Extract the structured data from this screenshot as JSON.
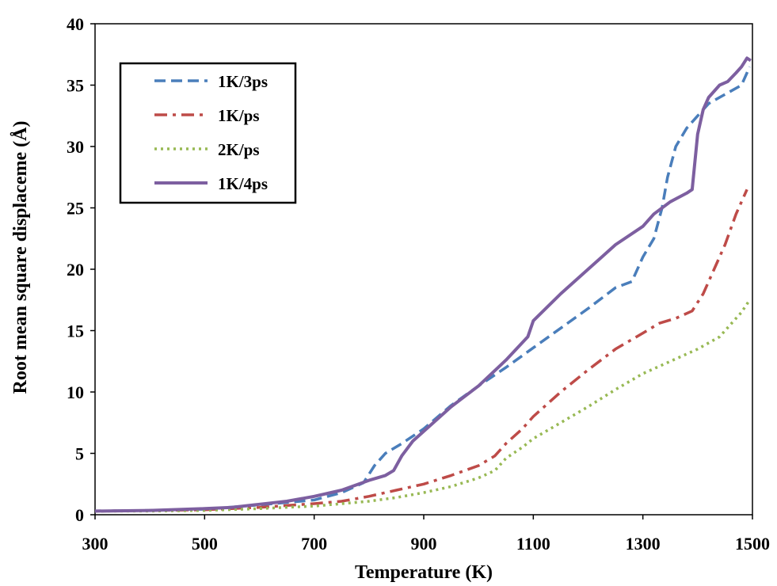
{
  "chart_data": {
    "type": "line",
    "title": "",
    "xlabel": "Temperature (K)",
    "ylabel": "Root mean square displaceme (Å)",
    "xlim": [
      300,
      1500
    ],
    "ylim": [
      0,
      40
    ],
    "xticks": [
      "300",
      "500",
      "700",
      "900",
      "1100",
      "1300",
      "1500"
    ],
    "yticks": [
      "0",
      "5",
      "10",
      "15",
      "20",
      "25",
      "30",
      "35",
      "40"
    ],
    "grid": false,
    "legend_position": "top-left",
    "series": [
      {
        "name": "1K/3ps",
        "color": "#4a7ebb",
        "dash": "dashed",
        "x": [
          300,
          400,
          500,
          600,
          700,
          750,
          790,
          810,
          830,
          860,
          900,
          950,
          1000,
          1050,
          1100,
          1150,
          1200,
          1250,
          1280,
          1300,
          1320,
          1335,
          1345,
          1360,
          1380,
          1400,
          1420,
          1440,
          1460,
          1480,
          1490,
          1495
        ],
        "y": [
          0.3,
          0.35,
          0.45,
          0.8,
          1.2,
          1.8,
          2.6,
          4.0,
          5.0,
          5.8,
          7.0,
          8.9,
          10.5,
          12.0,
          13.6,
          15.2,
          16.8,
          18.5,
          19.0,
          21.0,
          22.5,
          25.0,
          27.5,
          30.0,
          31.5,
          32.5,
          33.5,
          34.0,
          34.5,
          35.0,
          36.0,
          36.5
        ]
      },
      {
        "name": "1K/ps",
        "color": "#be4b48",
        "dash": "dashdot",
        "x": [
          300,
          400,
          500,
          600,
          700,
          750,
          800,
          850,
          900,
          950,
          1000,
          1030,
          1050,
          1080,
          1100,
          1150,
          1200,
          1250,
          1300,
          1330,
          1360,
          1390,
          1410,
          1430,
          1450,
          1470,
          1490
        ],
        "y": [
          0.3,
          0.35,
          0.4,
          0.6,
          0.9,
          1.1,
          1.5,
          2.0,
          2.5,
          3.2,
          4.0,
          4.8,
          5.8,
          7.0,
          8.0,
          10.0,
          11.8,
          13.5,
          14.8,
          15.6,
          16.0,
          16.6,
          18.0,
          20.0,
          22.0,
          24.5,
          26.5
        ]
      },
      {
        "name": "2K/ps",
        "color": "#98b954",
        "dash": "dotted",
        "x": [
          300,
          400,
          500,
          600,
          700,
          800,
          850,
          900,
          950,
          1000,
          1030,
          1050,
          1080,
          1100,
          1150,
          1200,
          1250,
          1300,
          1350,
          1400,
          1440,
          1460,
          1480,
          1495
        ],
        "y": [
          0.3,
          0.3,
          0.35,
          0.5,
          0.7,
          1.1,
          1.4,
          1.8,
          2.3,
          3.0,
          3.6,
          4.6,
          5.5,
          6.2,
          7.5,
          8.8,
          10.2,
          11.5,
          12.5,
          13.5,
          14.5,
          15.5,
          16.5,
          17.5
        ]
      },
      {
        "name": "1K/4ps",
        "color": "#7d5fa0",
        "dash": "solid",
        "x": [
          300,
          400,
          500,
          550,
          600,
          650,
          700,
          750,
          800,
          830,
          845,
          860,
          880,
          900,
          950,
          1000,
          1050,
          1090,
          1100,
          1150,
          1200,
          1250,
          1300,
          1320,
          1350,
          1380,
          1390,
          1400,
          1410,
          1420,
          1440,
          1455,
          1470,
          1480,
          1490,
          1497
        ],
        "y": [
          0.3,
          0.35,
          0.5,
          0.6,
          0.85,
          1.1,
          1.5,
          2.0,
          2.8,
          3.2,
          3.6,
          4.8,
          6.0,
          6.8,
          8.8,
          10.5,
          12.6,
          14.5,
          15.8,
          18.0,
          20.0,
          22.0,
          23.5,
          24.5,
          25.5,
          26.2,
          26.5,
          31.0,
          33.0,
          34.0,
          35.0,
          35.3,
          36.0,
          36.5,
          37.2,
          37.0
        ]
      }
    ]
  }
}
